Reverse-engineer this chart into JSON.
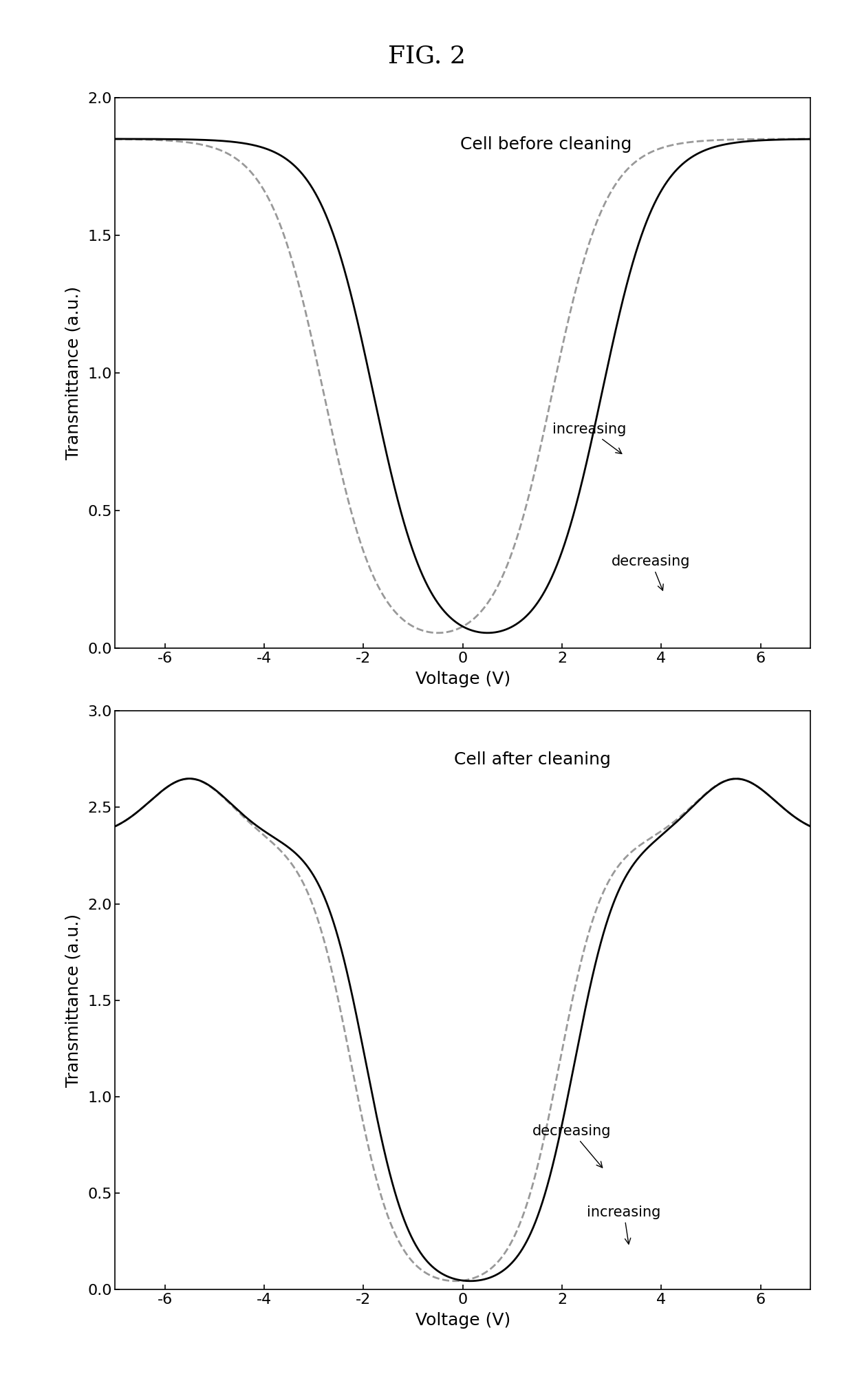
{
  "fig_title": "FIG. 2",
  "fig_title_fontsize": 26,
  "plot1_title": "Cell before cleaning",
  "plot2_title": "Cell after cleaning",
  "xlabel": "Voltage (V)",
  "ylabel": "Transmittance (a.u.)",
  "plot1_ylim": [
    0.0,
    2.0
  ],
  "plot2_ylim": [
    0.0,
    3.0
  ],
  "xlim": [
    -7.0,
    7.0
  ],
  "xticks": [
    -6,
    -4,
    -2,
    0,
    2,
    4,
    6
  ],
  "plot1_yticks": [
    0.0,
    0.5,
    1.0,
    1.5,
    2.0
  ],
  "plot2_yticks": [
    0.0,
    0.5,
    1.0,
    1.5,
    2.0,
    2.5,
    3.0
  ],
  "label_increasing": "increasing",
  "label_decreasing": "decreasing",
  "solid_color": "#000000",
  "dashed_color": "#999999",
  "linewidth": 2.0,
  "fontsize_axis": 18,
  "fontsize_tick": 16,
  "fontsize_annotation": 15,
  "background_color": "#ffffff"
}
